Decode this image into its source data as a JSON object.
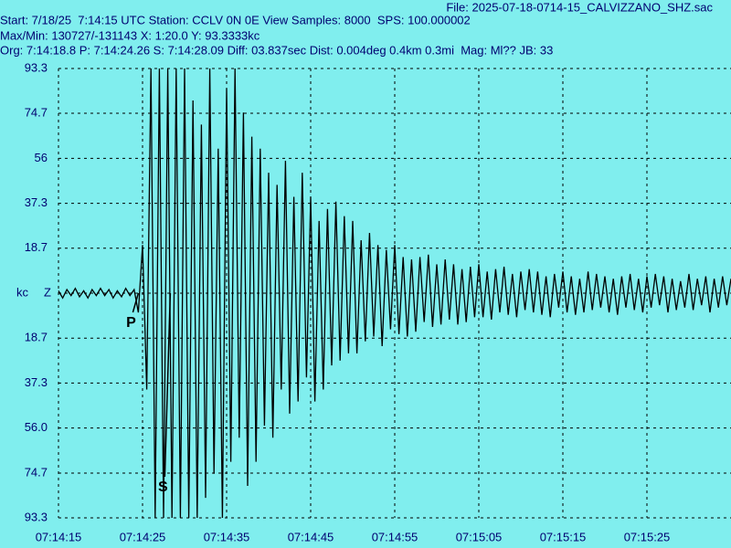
{
  "header": {
    "file": "File: 2025-07-18-0714-15_CALVIZZANO_SHZ.sac",
    "start": "Start: 7/18/25  7:14:15 UTC Station: CCLV 0N 0E View Samples: 8000  SPS: 100.000002",
    "maxmin": "Max/Min: 130727/-131143 X: 1:20.0 Y: 93.3333kc",
    "origin": "Org: 7:14:18.8 P: 7:14:24.26 S: 7:14:28.09 Diff: 03.837sec Dist: 0.004deg 0.4km 0.3mi  Mag: Ml?? JB: 33"
  },
  "chart_data": {
    "type": "line",
    "y_label": "kc",
    "xlim": [
      0,
      80
    ],
    "ylim": [
      -93.3,
      93.3
    ],
    "xticks": [
      {
        "value": 0,
        "label": "07:14:15"
      },
      {
        "value": 10,
        "label": "07:14:25"
      },
      {
        "value": 20,
        "label": "07:14:35"
      },
      {
        "value": 30,
        "label": "07:14:45"
      },
      {
        "value": 40,
        "label": "07:14:55"
      },
      {
        "value": 50,
        "label": "07:15:05"
      },
      {
        "value": 60,
        "label": "07:15:15"
      },
      {
        "value": 70,
        "label": "07:15:25"
      }
    ],
    "yticks": [
      93.3,
      74.7,
      56.0,
      37.3,
      18.7,
      {
        "value": 0,
        "label": "Z"
      },
      {
        "value": -18.7,
        "label": "18.7"
      },
      {
        "value": -37.3,
        "label": "37.3"
      },
      {
        "value": -56.0,
        "label": "56.0"
      },
      {
        "value": -74.7,
        "label": "74.7"
      },
      {
        "value": -93.3,
        "label": "93.3"
      }
    ],
    "grid": true,
    "annotations": [
      {
        "text": "P",
        "x": 9.5
      },
      {
        "text": "S",
        "x": 13.3
      }
    ],
    "x": [
      0,
      0.5,
      1,
      1.5,
      2,
      2.5,
      3,
      3.5,
      4,
      4.5,
      5,
      5.5,
      6,
      6.5,
      7,
      7.5,
      8,
      8.5,
      9,
      9.5,
      10,
      10.5,
      11,
      11.5,
      12,
      12.5,
      13,
      13.5,
      14,
      14.5,
      15,
      15.5,
      16,
      16.5,
      17,
      17.5,
      18,
      18.5,
      19,
      19.5,
      20,
      20.5,
      21,
      21.5,
      22,
      22.5,
      23,
      23.5,
      24,
      24.5,
      25,
      25.5,
      26,
      26.5,
      27,
      27.5,
      28,
      28.5,
      29,
      29.5,
      30,
      30.5,
      31,
      31.5,
      32,
      32.5,
      33,
      33.5,
      34,
      34.5,
      35,
      35.5,
      36,
      36.5,
      37,
      37.5,
      38,
      38.5,
      39,
      39.5,
      40,
      40.5,
      41,
      41.5,
      42,
      42.5,
      43,
      43.5,
      44,
      44.5,
      45,
      45.5,
      46,
      46.5,
      47,
      47.5,
      48,
      48.5,
      49,
      49.5,
      50,
      50.5,
      51,
      51.5,
      52,
      52.5,
      53,
      53.5,
      54,
      54.5,
      55,
      55.5,
      56,
      56.5,
      57,
      57.5,
      58,
      58.5,
      59,
      59.5,
      60,
      60.5,
      61,
      61.5,
      62,
      62.5,
      63,
      63.5,
      64,
      64.5,
      65,
      65.5,
      66,
      66.5,
      67,
      67.5,
      68,
      68.5,
      69,
      69.5,
      70,
      70.5,
      71,
      71.5,
      72,
      72.5,
      73,
      73.5,
      74,
      74.5,
      75,
      75.5,
      76,
      76.5,
      77,
      77.5,
      78,
      78.5,
      79,
      79.5,
      80
    ],
    "series": [
      {
        "color": "#000000",
        "values": [
          1,
          -2,
          1.5,
          -1,
          2,
          -1.5,
          1,
          -2,
          1.5,
          -1,
          2,
          -1,
          1.5,
          -2,
          1,
          -1.5,
          2,
          -1,
          1.5,
          -8,
          20,
          -40,
          93.3,
          -93.3,
          93.3,
          -93.3,
          93.3,
          -93.3,
          93.3,
          -93.3,
          93.3,
          -93.3,
          80,
          -93.3,
          70,
          -85,
          93.3,
          -75,
          60,
          -93.3,
          85,
          -70,
          93.3,
          -60,
          75,
          -80,
          65,
          -70,
          60,
          -55,
          50,
          -60,
          45,
          -40,
          55,
          -50,
          40,
          -45,
          50,
          -35,
          40,
          -45,
          30,
          -40,
          35,
          -30,
          38,
          -28,
          32,
          -25,
          30,
          -25,
          22,
          -20,
          25,
          -18,
          20,
          -22,
          18,
          -15,
          20,
          -17,
          15,
          -18,
          14,
          -16,
          15,
          -12,
          16,
          -14,
          12,
          -13,
          14,
          -11,
          12,
          -13,
          10,
          -12,
          11,
          -10,
          12,
          -10,
          9,
          -11,
          10,
          -8,
          11,
          -9,
          8,
          -10,
          9,
          -7,
          10,
          -8,
          9,
          -9,
          7,
          -10,
          8,
          -6,
          9,
          -8,
          7,
          -9,
          6,
          -8,
          9,
          -7,
          8,
          -6,
          7,
          -8,
          6,
          -9,
          7,
          -6,
          8,
          -7,
          6,
          -8,
          7,
          -6,
          8,
          -5,
          7,
          -8,
          6,
          -7,
          5,
          -6,
          8,
          -7,
          6,
          -5,
          7,
          -8,
          6,
          -6,
          7,
          -5,
          6
        ]
      }
    ]
  }
}
